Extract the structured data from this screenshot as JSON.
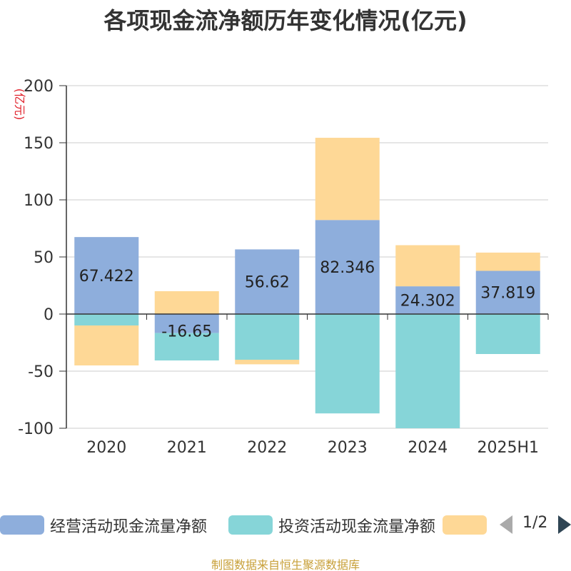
{
  "title": "各项现金流净额历年变化情况(亿元)",
  "unit_label": "(亿元)",
  "source": "制图数据来自恒生聚源数据库",
  "pager": {
    "text": "1/2"
  },
  "colors": {
    "operating": "#8eaedc",
    "investing": "#86d5d8",
    "third": "#fed896",
    "axis": "#333333",
    "grid": "#cccccc"
  },
  "chart_data": {
    "type": "bar",
    "stacked": true,
    "categories": [
      "2020",
      "2021",
      "2022",
      "2023",
      "2024",
      "2025H1"
    ],
    "ylim": [
      -100,
      200
    ],
    "yticks": [
      -100,
      -50,
      0,
      50,
      100,
      150,
      200
    ],
    "ylabel": "(亿元)",
    "grid": true,
    "legend_position": "bottom",
    "series": [
      {
        "name": "经营活动现金流量净额",
        "values": [
          67.422,
          -16.65,
          56.62,
          82.346,
          24.302,
          37.819
        ],
        "labels": [
          "67.422",
          "-16.65",
          "56.62",
          "82.346",
          "24.302",
          "37.819"
        ],
        "color": "#8eaedc"
      },
      {
        "name": "投资活动现金流量净额",
        "values": [
          -10,
          -24,
          -40,
          -87,
          -100,
          -35
        ],
        "color": "#86d5d8"
      },
      {
        "name": "",
        "values": [
          -35,
          20,
          -4,
          72,
          36,
          16
        ],
        "color": "#fed896"
      }
    ]
  }
}
